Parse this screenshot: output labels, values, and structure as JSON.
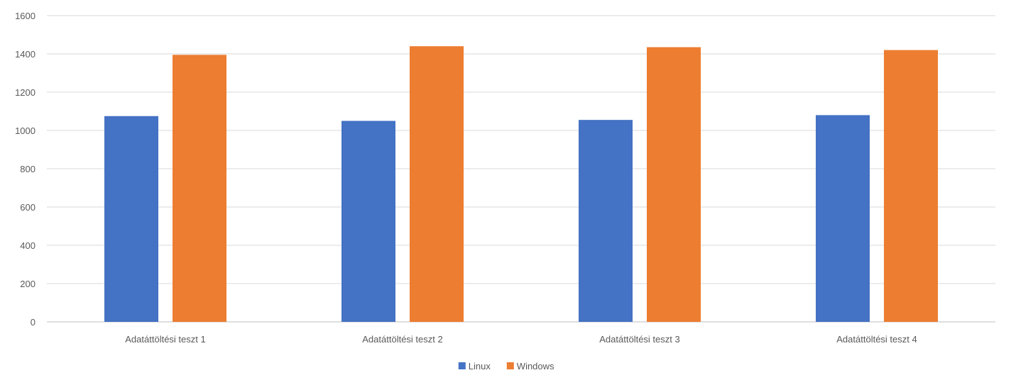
{
  "chart_data": {
    "type": "bar",
    "categories": [
      "Adatáttöltési teszt 1",
      "Adatáttöltési teszt 2",
      "Adatáttöltési teszt 3",
      "Adatáttöltési teszt 4"
    ],
    "series": [
      {
        "name": "Linux",
        "color": "#4472c4",
        "values": [
          1075,
          1050,
          1055,
          1080
        ]
      },
      {
        "name": "Windows",
        "color": "#ed7d31",
        "values": [
          1395,
          1440,
          1435,
          1420
        ]
      }
    ],
    "yticks": [
      "0",
      "200",
      "400",
      "600",
      "800",
      "1000",
      "1200",
      "1400",
      "1600"
    ],
    "ylim": [
      0,
      1600
    ],
    "grid": true,
    "legend_position": "bottom"
  }
}
